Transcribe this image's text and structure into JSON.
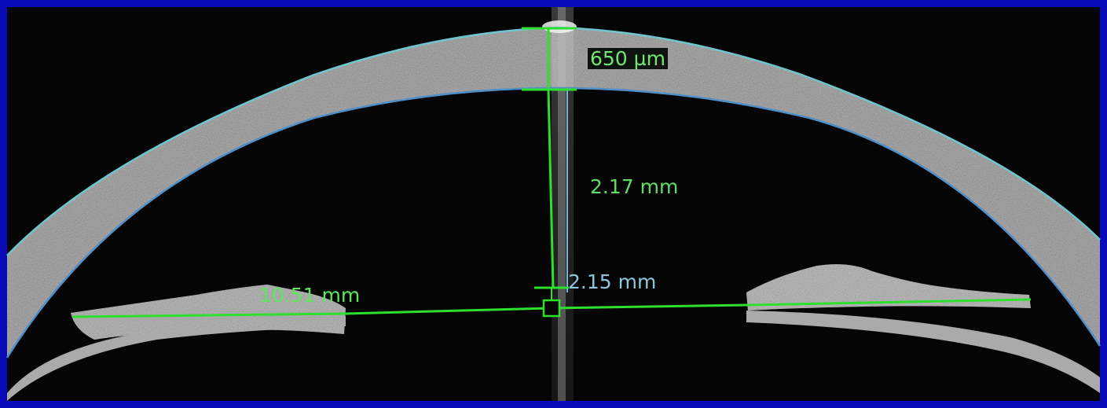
{
  "image": {
    "description_colors": {
      "frame": "#0a0ab8",
      "background": "#050505",
      "tissue": "#9a9a9a",
      "measurement_green": "#2ee02e",
      "outline_cyan": "#6fc6cf",
      "outline_blue": "#4f8fc8"
    }
  },
  "measurements": {
    "central_thickness": "650 µm",
    "anterior_chamber_depth": "2.17 mm",
    "lens_vault": "2.15 mm",
    "angle_to_angle": "10.51 mm"
  }
}
